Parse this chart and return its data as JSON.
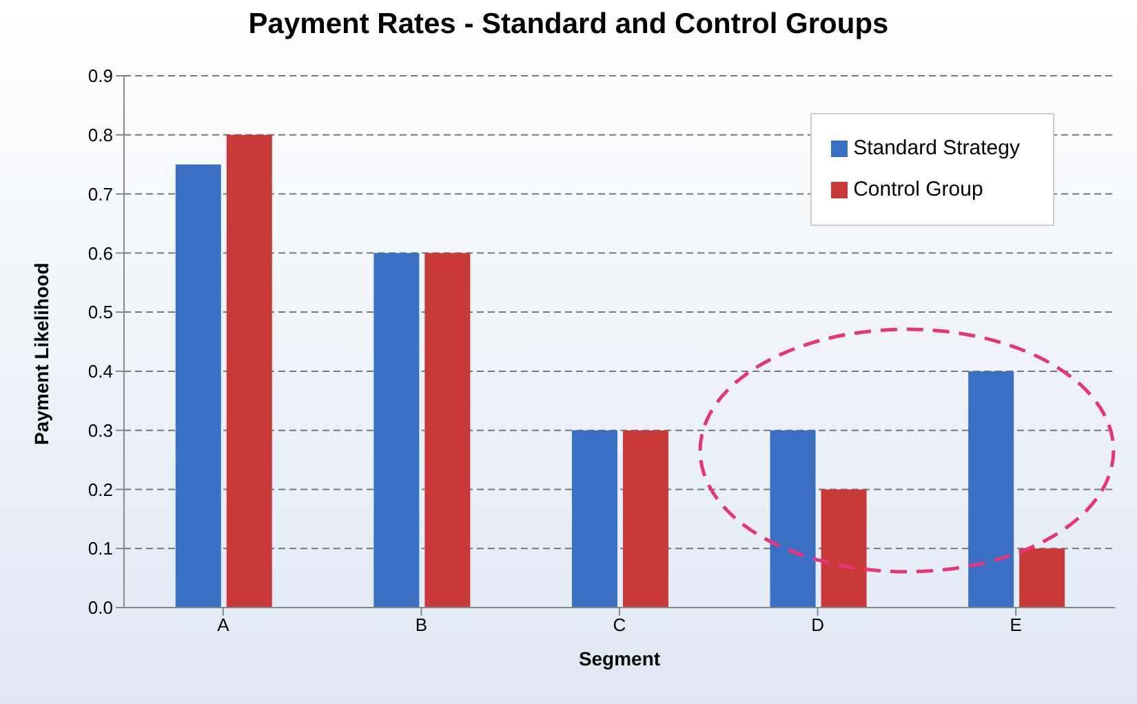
{
  "chart_data": {
    "type": "bar",
    "title": "Payment Rates - Standard and Control Groups",
    "xlabel": "Segment",
    "ylabel": "Payment Likelihood",
    "categories": [
      "A",
      "B",
      "C",
      "D",
      "E"
    ],
    "series": [
      {
        "name": "Standard Strategy",
        "color": "#3a6fc4",
        "values": [
          0.75,
          0.6,
          0.3,
          0.3,
          0.4
        ]
      },
      {
        "name": "Control Group",
        "color": "#c83a3a",
        "values": [
          0.8,
          0.6,
          0.3,
          0.2,
          0.1
        ]
      }
    ],
    "ylim": [
      0,
      0.9
    ],
    "yticks": [
      {
        "value": 0,
        "label": "0.0"
      },
      0.1,
      0.2,
      0.3,
      0.4,
      0.5,
      0.6,
      0.7,
      0.8,
      0.9
    ],
    "grid": "y",
    "legend": "top right"
  }
}
